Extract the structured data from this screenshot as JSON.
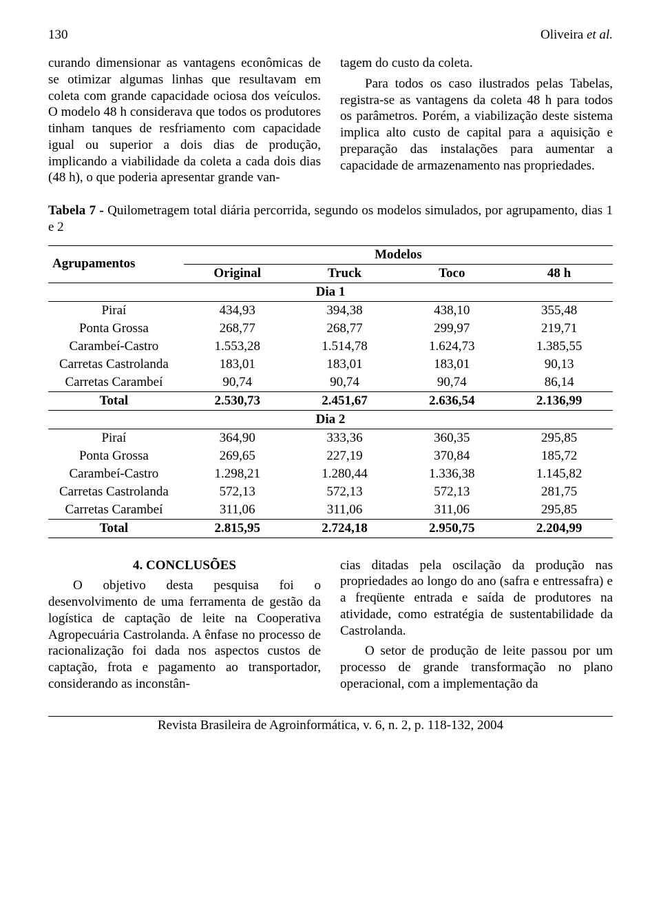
{
  "header": {
    "page_number": "130",
    "authors_prefix": "Oliveira ",
    "authors_suffix": "et al."
  },
  "body_top": {
    "left_para": "curando dimensionar as vantagens econômicas de se otimizar algumas linhas que resultavam em coleta com grande capacidade ociosa dos veículos. O modelo 48 h considerava que todos os produtores tinham tanques de resfriamento com capacidade igual ou superior a dois dias de produção, implicando a viabilidade da coleta a cada dois dias (48 h), o que poderia apresentar grande van-",
    "right_para_1": "tagem do custo da coleta.",
    "right_para_2": "Para todos os caso ilustrados pelas Tabelas, registra-se as vantagens da coleta 48 h para todos os parâmetros. Porém, a viabilização deste sistema implica alto custo de capital para a aquisição e preparação das instalações para aumentar a capacidade de armazenamento nas propriedades."
  },
  "table": {
    "caption_bold": "Tabela 7 - ",
    "caption_rest": "Quilometragem total diária percorrida, segundo os modelos simulados, por agrupamento, dias 1 e 2",
    "row_header": "Agrupamentos",
    "models_header": "Modelos",
    "columns": [
      "Original",
      "Truck",
      "Toco",
      "48 h"
    ],
    "section1": "Dia 1",
    "rows1": [
      {
        "label": "Piraí",
        "vals": [
          "434,93",
          "394,38",
          "438,10",
          "355,48"
        ]
      },
      {
        "label": "Ponta Grossa",
        "vals": [
          "268,77",
          "268,77",
          "299,97",
          "219,71"
        ]
      },
      {
        "label": "Carambeí-Castro",
        "vals": [
          "1.553,28",
          "1.514,78",
          "1.624,73",
          "1.385,55"
        ]
      },
      {
        "label": "Carretas Castrolanda",
        "vals": [
          "183,01",
          "183,01",
          "183,01",
          "90,13"
        ]
      },
      {
        "label": "Carretas Carambeí",
        "vals": [
          "90,74",
          "90,74",
          "90,74",
          "86,14"
        ]
      }
    ],
    "total1": {
      "label": "Total",
      "vals": [
        "2.530,73",
        "2.451,67",
        "2.636,54",
        "2.136,99"
      ]
    },
    "section2": "Dia 2",
    "rows2": [
      {
        "label": "Piraí",
        "vals": [
          "364,90",
          "333,36",
          "360,35",
          "295,85"
        ]
      },
      {
        "label": "Ponta Grossa",
        "vals": [
          "269,65",
          "227,19",
          "370,84",
          "185,72"
        ]
      },
      {
        "label": "Carambeí-Castro",
        "vals": [
          "1.298,21",
          "1.280,44",
          "1.336,38",
          "1.145,82"
        ]
      },
      {
        "label": "Carretas Castrolanda",
        "vals": [
          "572,13",
          "572,13",
          "572,13",
          "281,75"
        ]
      },
      {
        "label": "Carretas Carambeí",
        "vals": [
          "311,06",
          "311,06",
          "311,06",
          "295,85"
        ]
      }
    ],
    "total2": {
      "label": "Total",
      "vals": [
        "2.815,95",
        "2.724,18",
        "2.950,75",
        "2.204,99"
      ]
    },
    "styling": {
      "border_color": "#000000",
      "font_size_pt": 14,
      "col_align": [
        "left",
        "center",
        "center",
        "center",
        "center"
      ]
    }
  },
  "conclusions": {
    "heading": "4. CONCLUSÕES",
    "left_para": "O objetivo desta pesquisa foi o desenvolvimento de uma ferramenta de gestão da logística de captação de leite na Cooperativa Agropecuária Castrolanda. A ênfase no processo de racionalização foi dada nos aspectos custos de captação, frota e pagamento ao transportador, considerando as inconstân-",
    "right_para_1": "cias ditadas pela oscilação da produção nas propriedades ao longo do ano (safra e entressafra) e a freqüente entrada e saída de produtores na atividade, como estratégia de sustentabilidade da Castrolanda.",
    "right_para_2": "O setor de produção de leite passou por um processo de grande transformação no plano operacional, com a implementação da"
  },
  "footer": {
    "text": "Revista Brasileira de Agroinformática, v. 6, n. 2, p. 118-132, 2004"
  },
  "colors": {
    "text": "#000000",
    "background": "#ffffff",
    "rule": "#000000"
  }
}
